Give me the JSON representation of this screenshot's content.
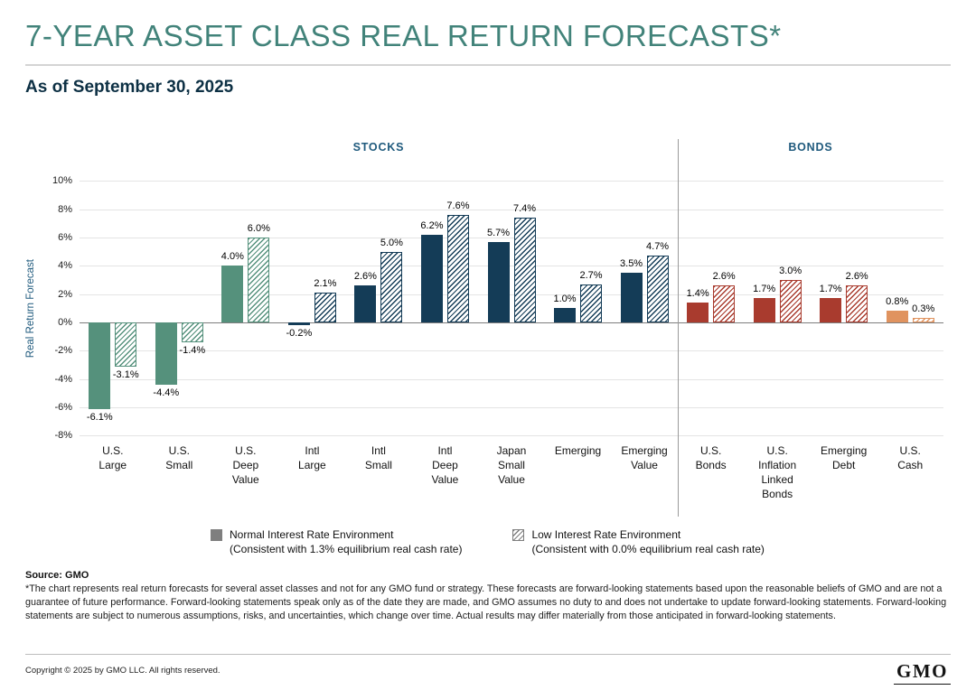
{
  "page": {
    "title": "7-YEAR ASSET CLASS REAL RETURN FORECASTS*",
    "as_of": "As of September 30, 2025"
  },
  "chart_data": {
    "type": "bar",
    "title": "7-Year Asset Class Real Return Forecasts",
    "ylabel": "Real Return Forecast",
    "ylim": [
      -8,
      10
    ],
    "ytick_step": 2,
    "ytick_suffix": "%",
    "grid": true,
    "sections": [
      {
        "label": "STOCKS",
        "span": 9
      },
      {
        "label": "BONDS",
        "span": 4
      }
    ],
    "categories": [
      {
        "lines": [
          "U.S.",
          "Large"
        ],
        "group": "green"
      },
      {
        "lines": [
          "U.S.",
          "Small"
        ],
        "group": "green"
      },
      {
        "lines": [
          "U.S.",
          "Deep",
          "Value"
        ],
        "group": "green"
      },
      {
        "lines": [
          "Intl",
          "Large"
        ],
        "group": "navy"
      },
      {
        "lines": [
          "Intl",
          "Small"
        ],
        "group": "navy"
      },
      {
        "lines": [
          "Intl",
          "Deep",
          "Value"
        ],
        "group": "navy"
      },
      {
        "lines": [
          "Japan",
          "Small",
          "Value"
        ],
        "group": "navy"
      },
      {
        "lines": [
          "Emerging"
        ],
        "group": "navy"
      },
      {
        "lines": [
          "Emerging",
          "Value"
        ],
        "group": "navy"
      },
      {
        "lines": [
          "U.S.",
          "Bonds"
        ],
        "group": "red"
      },
      {
        "lines": [
          "U.S.",
          "Inflation",
          "Linked",
          "Bonds"
        ],
        "group": "red"
      },
      {
        "lines": [
          "Emerging",
          "Debt"
        ],
        "group": "red"
      },
      {
        "lines": [
          "U.S.",
          "Cash"
        ],
        "group": "orange"
      }
    ],
    "series": [
      {
        "name": "Normal Interest Rate Environment",
        "pattern": "solid",
        "values": [
          -6.1,
          -4.4,
          4.0,
          -0.2,
          2.6,
          6.2,
          5.7,
          1.0,
          3.5,
          1.4,
          1.7,
          1.7,
          0.8
        ]
      },
      {
        "name": "Low Interest Rate Environment",
        "pattern": "hatched",
        "values": [
          -3.1,
          -1.4,
          6.0,
          2.1,
          5.0,
          7.6,
          7.4,
          2.7,
          4.7,
          2.6,
          3.0,
          2.6,
          0.3
        ]
      }
    ],
    "palette": {
      "green": "#55917C",
      "navy": "#143C57",
      "red": "#A93B2E",
      "orange": "#E0935F"
    }
  },
  "legend": {
    "items": [
      {
        "swatch": "solid",
        "label": "Normal Interest Rate Environment",
        "sublabel": "(Consistent with 1.3% equilibrium real cash rate)"
      },
      {
        "swatch": "hatched",
        "label": "Low Interest Rate Environment",
        "sublabel": "(Consistent with 0.0% equilibrium real cash rate)"
      }
    ]
  },
  "footer": {
    "source": "Source: GMO",
    "disclaimer": "*The chart represents real return forecasts for several asset classes and not for any GMO fund or strategy. These forecasts are forward-looking statements based upon the reasonable beliefs of GMO and are not a guarantee of future performance. Forward-looking statements speak only as of the date they are made, and GMO assumes no duty to and does not undertake to update forward-looking statements. Forward-looking statements are subject to numerous assumptions, risks, and uncertainties, which change over time.  Actual results may differ materially from those anticipated in forward-looking statements.",
    "copyright": "Copyright © 2025 by GMO LLC. All rights reserved.",
    "logo": "GMO"
  }
}
